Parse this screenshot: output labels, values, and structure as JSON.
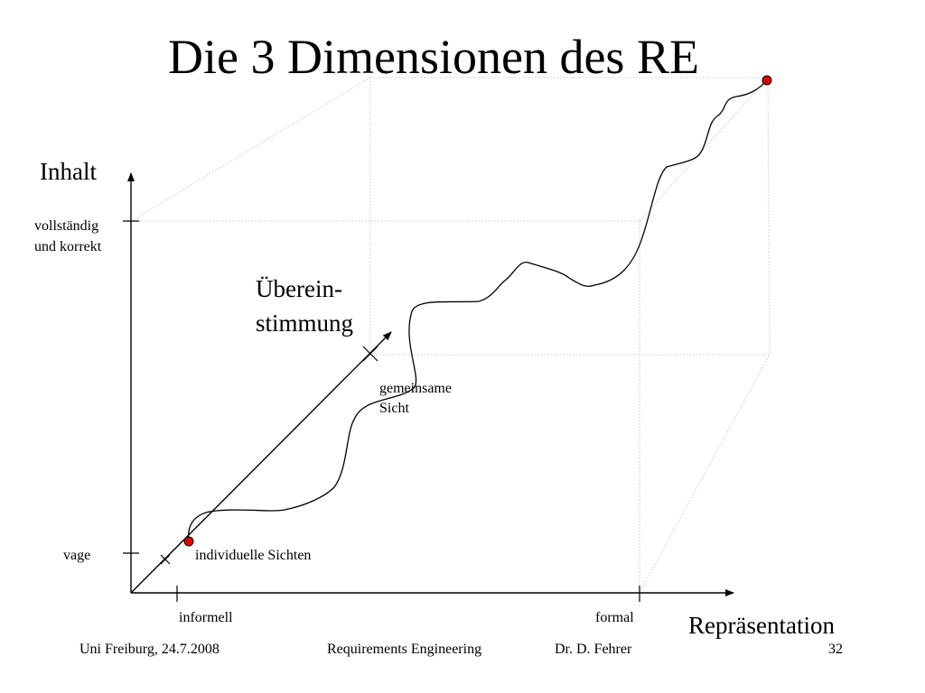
{
  "slide": {
    "title": "Die 3 Dimensionen des RE"
  },
  "axes": {
    "y_label": "Inhalt",
    "y_top": [
      "vollständig",
      "und  korrekt"
    ],
    "y_bottom": "vage",
    "x_label": "Repräsentation",
    "x_left": "informell",
    "x_right": "formal",
    "z_label": [
      "Überein-",
      "stimmung"
    ]
  },
  "annotations": {
    "start": "individuelle Sichten",
    "end": [
      "gemeinsame",
      "Sicht"
    ]
  },
  "colors": {
    "line": "#000000",
    "cube": "#c8c8c8",
    "marker": "#e00000"
  },
  "footer": {
    "left": "Uni Freiburg, 24.7.2008",
    "center": "Requirements Engineering",
    "author": "Dr. D. Fehrer",
    "page": "32"
  }
}
